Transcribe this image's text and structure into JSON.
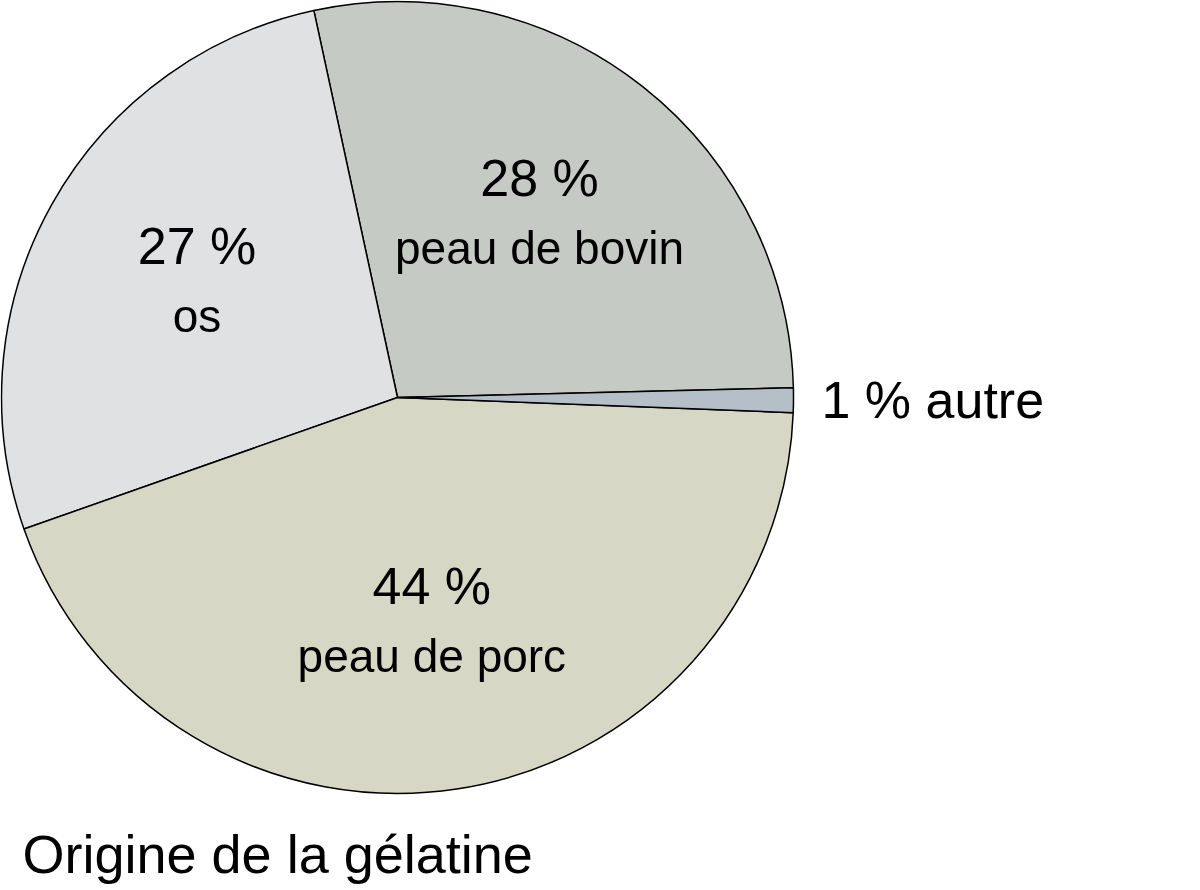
{
  "chart_data": {
    "type": "pie",
    "title": "Origine de la gélatine",
    "categories": [
      "peau de bovin",
      "os",
      "peau de porc",
      "autre"
    ],
    "values": [
      28,
      27,
      44,
      1
    ],
    "value_labels": [
      "28 %",
      "27 %",
      "44 %",
      "1 %"
    ],
    "colors": [
      "#c5cac4",
      "#e0e1e3",
      "#d7d7c5",
      "#b4bfc7"
    ]
  }
}
